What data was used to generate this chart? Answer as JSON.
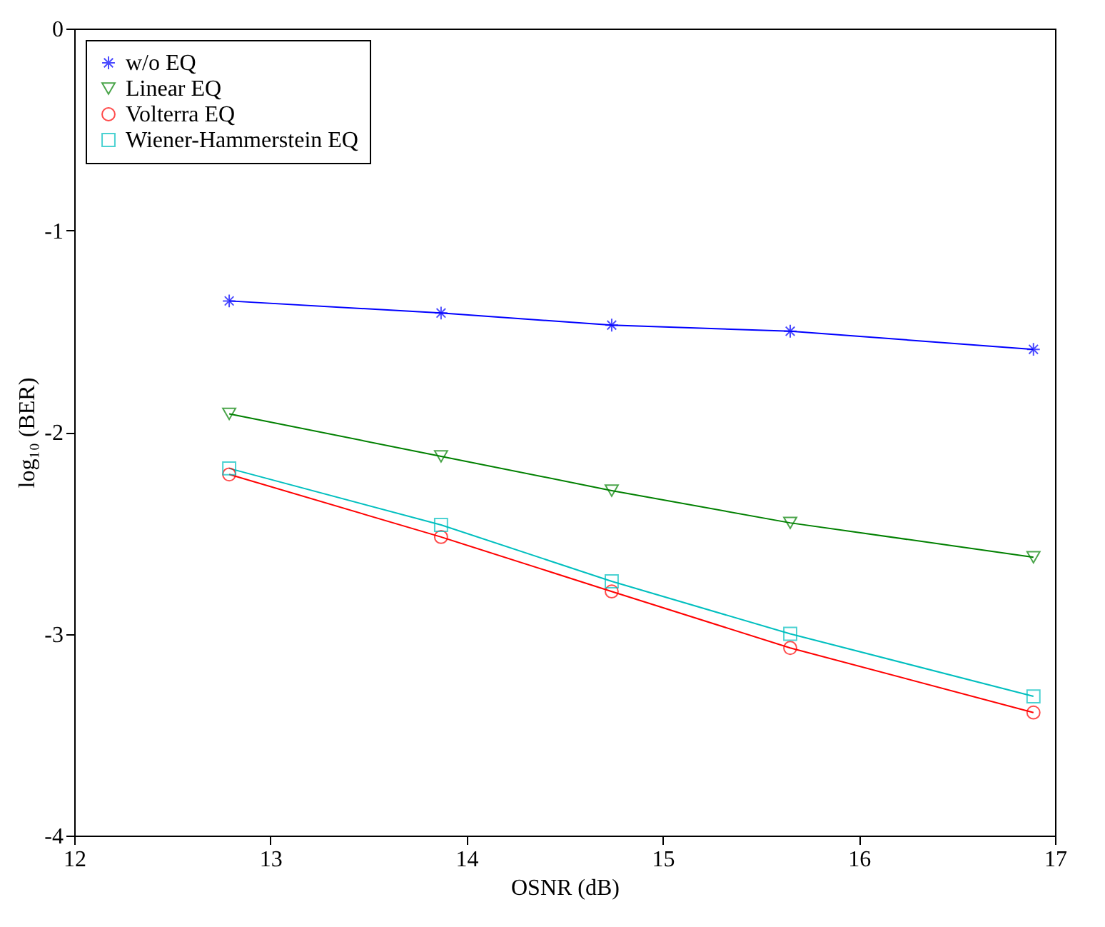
{
  "chart_data": {
    "type": "line",
    "xlabel": "OSNR (dB)",
    "ylabel": "log₁₀ (BER)",
    "xlim": [
      12,
      17
    ],
    "ylim": [
      -4,
      0
    ],
    "xticks": [
      12,
      13,
      14,
      15,
      16,
      17
    ],
    "yticks": [
      -4,
      -3,
      -2,
      -1,
      0
    ],
    "legend": "top left",
    "grid": false,
    "line_style": "solid",
    "x": [
      12.79,
      13.87,
      14.74,
      15.65,
      16.89
    ],
    "series": [
      {
        "name": "w/o EQ",
        "color": "#0000ff",
        "marker": "cross",
        "values": [
          -1.35,
          -1.41,
          -1.47,
          -1.5,
          -1.59
        ]
      },
      {
        "name": "Linear EQ",
        "color": "#008000",
        "marker": "triangle",
        "values": [
          -1.91,
          -2.12,
          -2.29,
          -2.45,
          -2.62
        ]
      },
      {
        "name": "Volterra EQ",
        "color": "#ff0000",
        "marker": "circle",
        "values": [
          -2.21,
          -2.52,
          -2.79,
          -3.07,
          -3.39
        ]
      },
      {
        "name": "Wiener-Hammerstein EQ",
        "color": "#00bfbf",
        "marker": "square",
        "values": [
          -2.18,
          -2.46,
          -2.74,
          -3.0,
          -3.31
        ]
      }
    ]
  }
}
